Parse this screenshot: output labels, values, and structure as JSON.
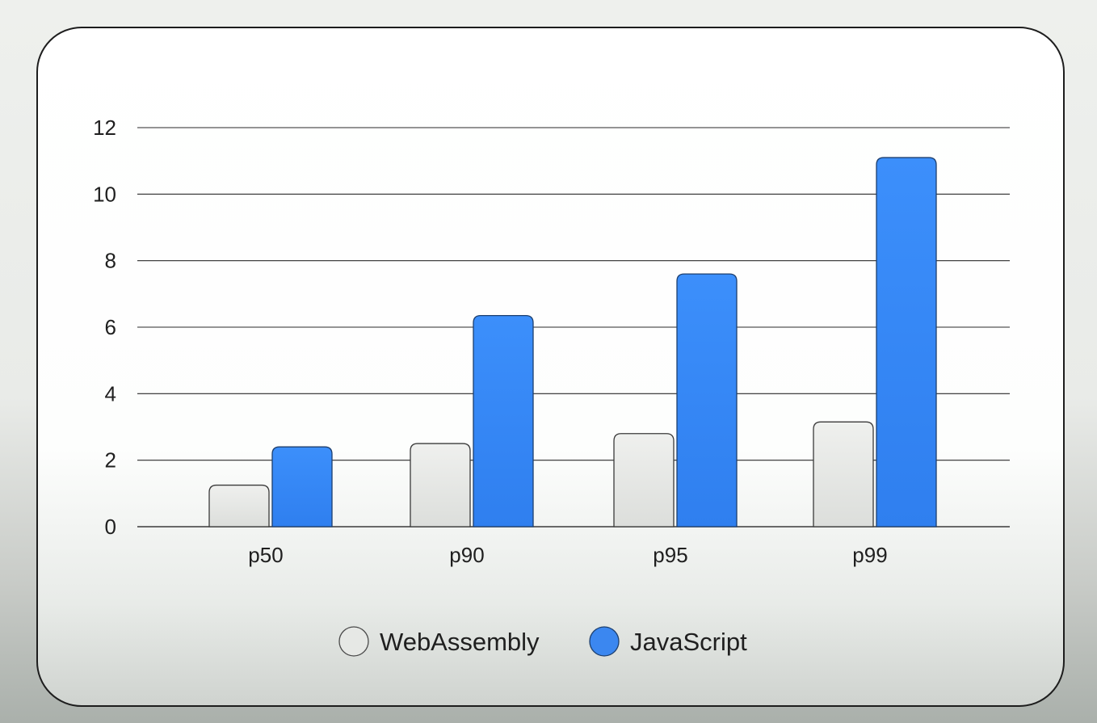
{
  "chart_data": {
    "type": "bar",
    "title": "",
    "xlabel": "",
    "ylabel": "",
    "categories": [
      "p50",
      "p90",
      "p95",
      "p99"
    ],
    "ylim": [
      0,
      12
    ],
    "yticks": [
      0,
      2,
      4,
      6,
      8,
      10,
      12
    ],
    "grid": true,
    "legend_position": "bottom-center",
    "series": [
      {
        "name": "WebAssembly",
        "values": [
          1.25,
          2.5,
          2.8,
          3.15
        ],
        "color": "#e6e8e5"
      },
      {
        "name": "JavaScript",
        "values": [
          2.4,
          6.35,
          7.6,
          11.1
        ],
        "color": "#3a8cf8"
      }
    ]
  }
}
